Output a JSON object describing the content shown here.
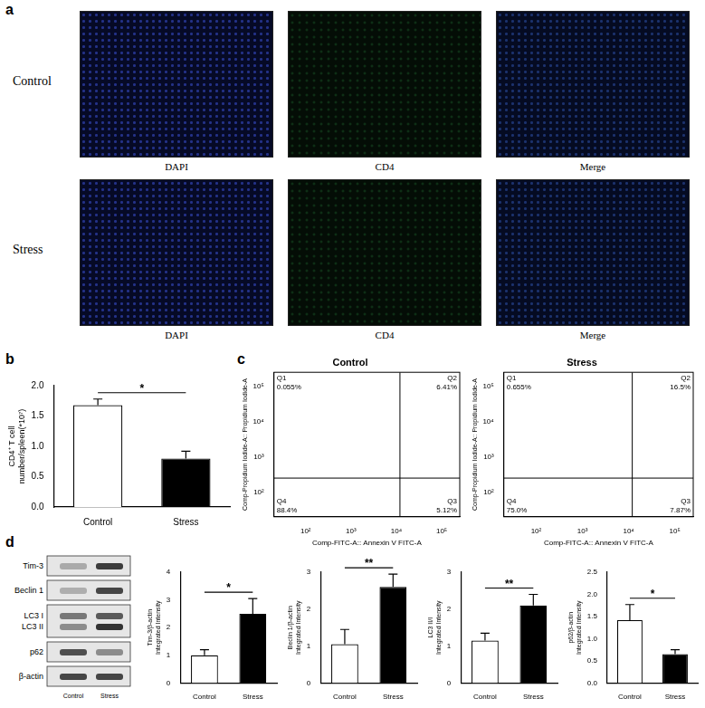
{
  "figure": {
    "panel_labels": [
      "a",
      "b",
      "c",
      "d"
    ],
    "microscopy": {
      "rows": [
        "Control",
        "Stress"
      ],
      "columns": [
        "DAPI",
        "CD4",
        "Merge"
      ]
    },
    "western_blot": {
      "rows": [
        "Tim-3",
        "Beclin 1",
        [
          "LC3 I",
          "LC3 II"
        ],
        "p62",
        "β-actin"
      ],
      "lanes": [
        "Control",
        "Stress"
      ]
    }
  },
  "chart_data": [
    {
      "type": "bar",
      "y_label": [
        "CD4⁺ T cell",
        "number/spleen(*10⁷)"
      ],
      "categories": [
        "Control",
        "Stress"
      ],
      "values": [
        1.68,
        0.8
      ],
      "errors": [
        0.1,
        0.12
      ],
      "colors": [
        "#ffffff",
        "#000000"
      ],
      "ylim": [
        0,
        2.0
      ],
      "yticks": [
        {
          "value": 0,
          "label": "0.0"
        },
        {
          "value": 0.5,
          "label": "0.5"
        },
        {
          "value": 1.0,
          "label": "1.0"
        },
        {
          "value": 1.5,
          "label": "1.5"
        },
        {
          "value": 2.0,
          "label": "2.0"
        }
      ],
      "annotation": "*",
      "grid": false
    },
    {
      "type": "scatter",
      "title": "Control",
      "x_label": "Comp-FITC-A:: Annexin V FITC-A",
      "y_label": "Comp-Propidium Iodide-A:: Propidium Iodide-A",
      "log": true,
      "xlim": [
        20,
        250000
      ],
      "ylim": [
        20,
        250000
      ],
      "xticks": [
        {
          "value": 100,
          "label": "10²"
        },
        {
          "value": 1000,
          "label": "10³"
        },
        {
          "value": 10000,
          "label": "10⁴"
        },
        {
          "value": 100000,
          "label": "10⁵"
        }
      ],
      "yticks": [
        {
          "value": 100,
          "label": "10²"
        },
        {
          "value": 1000,
          "label": "10³"
        },
        {
          "value": 10000,
          "label": "10⁴"
        },
        {
          "value": 100000,
          "label": "10⁵"
        }
      ],
      "gate_x": 12000,
      "gate_y": 250,
      "quadrants": [
        {
          "name": "Q1",
          "value": 0.055,
          "label": "0.055%"
        },
        {
          "name": "Q2",
          "value": 6.41,
          "label": "6.41%"
        },
        {
          "name": "Q3",
          "value": 5.12,
          "label": "5.12%"
        },
        {
          "name": "Q4",
          "value": 88.4,
          "label": "88.4%"
        }
      ],
      "grid": false
    },
    {
      "type": "scatter",
      "title": "Stress",
      "x_label": "Comp-FITC-A:: Annexin V FITC-A",
      "y_label": "Comp-Propidium Iodide-A:: Propidium Iodide-A",
      "log": true,
      "xlim": [
        20,
        250000
      ],
      "ylim": [
        20,
        250000
      ],
      "xticks": [
        {
          "value": 100,
          "label": "10²"
        },
        {
          "value": 1000,
          "label": "10³"
        },
        {
          "value": 10000,
          "label": "10⁴"
        },
        {
          "value": 100000,
          "label": "10⁵"
        }
      ],
      "yticks": [
        {
          "value": 100,
          "label": "10²"
        },
        {
          "value": 1000,
          "label": "10³"
        },
        {
          "value": 10000,
          "label": "10⁴"
        },
        {
          "value": 100000,
          "label": "10⁵"
        }
      ],
      "gate_x": 12000,
      "gate_y": 250,
      "quadrants": [
        {
          "name": "Q1",
          "value": 0.655,
          "label": "0.655%"
        },
        {
          "name": "Q2",
          "value": 16.5,
          "label": "16.5%"
        },
        {
          "name": "Q3",
          "value": 7.87,
          "label": "7.87%"
        },
        {
          "name": "Q4",
          "value": 75.0,
          "label": "75.0%"
        }
      ],
      "grid": false
    },
    {
      "type": "bar",
      "y_label": [
        "Tim-3/β-actin",
        "Integrated Intensity"
      ],
      "categories": [
        "Control",
        "Stress"
      ],
      "values": [
        1.0,
        2.5
      ],
      "errors": [
        0.2,
        0.55
      ],
      "colors": [
        "#ffffff",
        "#000000"
      ],
      "ylim": [
        0,
        4
      ],
      "yticks": [
        0,
        1,
        2,
        3,
        4
      ],
      "annotation": "*",
      "grid": false
    },
    {
      "type": "bar",
      "y_label": [
        "Beclin 1/β-actin",
        "Integrated Intensity"
      ],
      "categories": [
        "Control",
        "Stress"
      ],
      "values": [
        1.05,
        2.6
      ],
      "errors": [
        0.4,
        0.35
      ],
      "colors": [
        "#ffffff",
        "#000000"
      ],
      "ylim": [
        0,
        3
      ],
      "yticks": [
        0,
        1,
        2,
        3
      ],
      "annotation": "**",
      "grid": false
    },
    {
      "type": "bar",
      "y_label": [
        "LC3 II/I",
        "Integrated Intensity"
      ],
      "categories": [
        "Control",
        "Stress"
      ],
      "values": [
        1.15,
        2.1
      ],
      "errors": [
        0.2,
        0.3
      ],
      "colors": [
        "#ffffff",
        "#000000"
      ],
      "ylim": [
        0,
        3
      ],
      "yticks": [
        0,
        1,
        2,
        3
      ],
      "annotation": "**",
      "grid": false
    },
    {
      "type": "bar",
      "y_label": [
        "p62/β-actin",
        "Integrated Intensity"
      ],
      "categories": [
        "Control",
        "Stress"
      ],
      "values": [
        1.42,
        0.65
      ],
      "errors": [
        0.35,
        0.1
      ],
      "colors": [
        "#ffffff",
        "#000000"
      ],
      "ylim": [
        0,
        2.5
      ],
      "yticks": [
        {
          "value": 0,
          "label": "0.0"
        },
        {
          "value": 0.5,
          "label": "0.5"
        },
        {
          "value": 1.0,
          "label": "1.0"
        },
        {
          "value": 1.5,
          "label": "1.5"
        },
        {
          "value": 2.0,
          "label": "2.0"
        },
        {
          "value": 2.5,
          "label": "2.5"
        }
      ],
      "annotation": "*",
      "grid": false
    }
  ]
}
